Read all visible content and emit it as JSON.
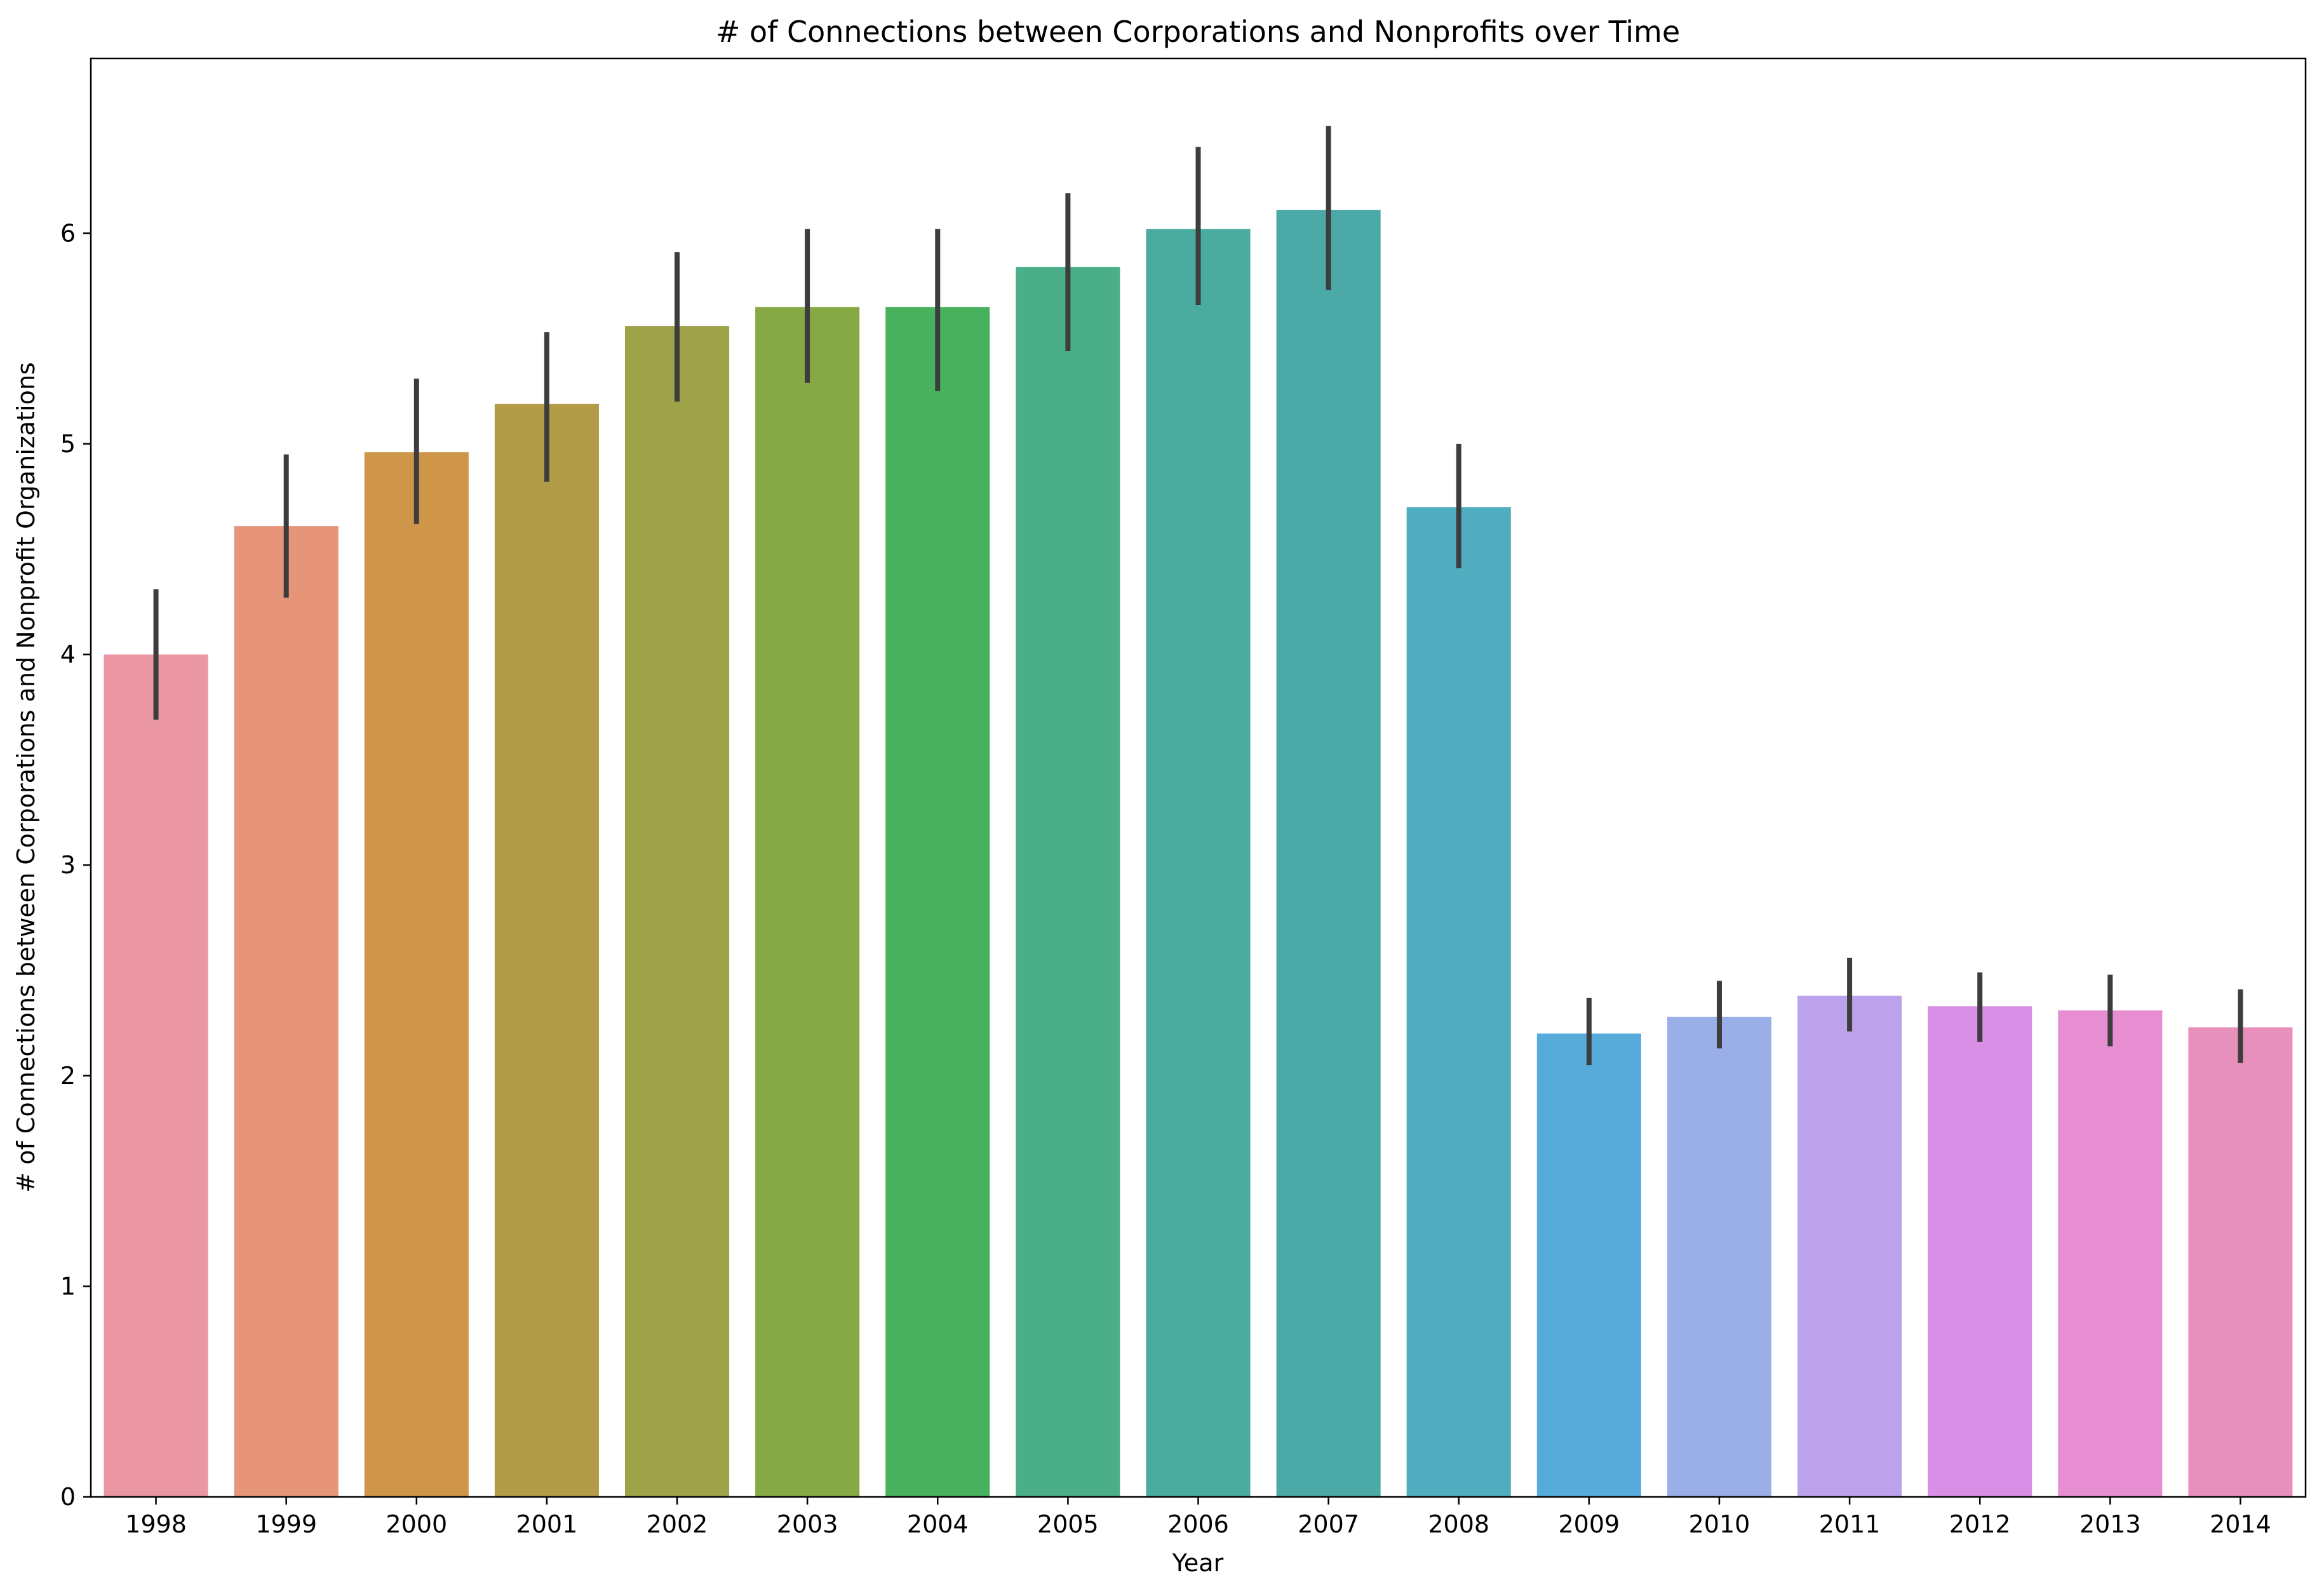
{
  "chart_data": {
    "type": "bar",
    "title": "# of Connections between Corporations and Nonprofits over Time",
    "xlabel": "Year",
    "ylabel": "# of Connections between Corporations and Nonprofit Organizations",
    "ylim": [
      0,
      6.83
    ],
    "yticks": [
      "0",
      "1",
      "2",
      "3",
      "4",
      "5",
      "6"
    ],
    "categories": [
      "1998",
      "1999",
      "2000",
      "2001",
      "2002",
      "2003",
      "2004",
      "2005",
      "2006",
      "2007",
      "2008",
      "2009",
      "2010",
      "2011",
      "2012",
      "2013",
      "2014"
    ],
    "values": [
      4.0,
      4.61,
      4.96,
      5.19,
      5.56,
      5.65,
      5.65,
      5.84,
      6.02,
      6.11,
      4.7,
      2.2,
      2.28,
      2.38,
      2.33,
      2.31,
      2.23
    ],
    "error_low": [
      3.69,
      4.27,
      4.62,
      4.82,
      5.2,
      5.29,
      5.25,
      5.44,
      5.66,
      5.73,
      4.41,
      2.05,
      2.13,
      2.21,
      2.16,
      2.14,
      2.06
    ],
    "error_high": [
      4.31,
      4.95,
      5.31,
      5.53,
      5.91,
      6.02,
      6.02,
      6.19,
      6.41,
      6.51,
      5.0,
      2.37,
      2.45,
      2.56,
      2.49,
      2.48,
      2.41
    ],
    "colors": [
      "#EA96A3",
      "#E69579",
      "#CF9649",
      "#B39C48",
      "#9EA248",
      "#86A946",
      "#48B15D",
      "#4AAE89",
      "#4AAC9E",
      "#4BA9A7",
      "#50ADC0",
      "#56ABDA",
      "#9AAEE8",
      "#BCA2EA",
      "#DA8FE7",
      "#E78DD2",
      "#E890BC"
    ],
    "errorbar_color": "#3d3d3d",
    "grid": false,
    "legend": "none"
  }
}
